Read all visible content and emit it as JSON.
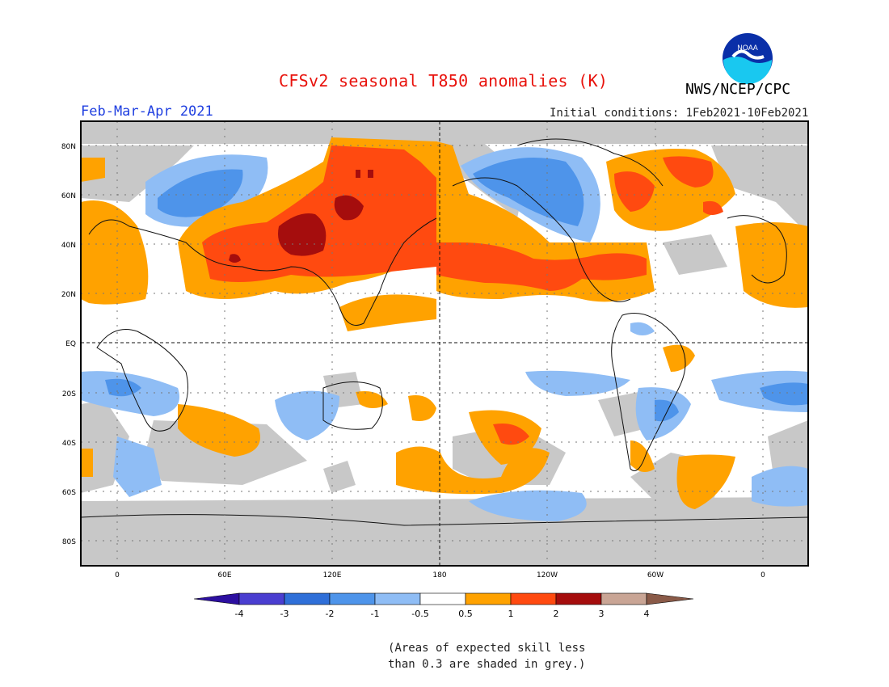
{
  "title": "CFSv2 seasonal T850 anomalies (K)",
  "organization": "NWS/NCEP/CPC",
  "logo_text": "NOAA",
  "period": "Feb-Mar-Apr 2021",
  "initial_conditions": "Initial conditions: 1Feb2021-10Feb2021",
  "lat_labels": [
    "80N",
    "60N",
    "40N",
    "20N",
    "EQ",
    "20S",
    "40S",
    "60S",
    "80S"
  ],
  "lon_labels": [
    "0",
    "60E",
    "120E",
    "180",
    "120W",
    "60W",
    "0"
  ],
  "colorbar": {
    "labels": [
      "-4",
      "-3",
      "-2",
      "-1",
      "-0.5",
      "0.5",
      "1",
      "2",
      "3",
      "4"
    ],
    "colors": [
      "#2c0fa0",
      "#4a3ed0",
      "#2f6fd8",
      "#4e94ea",
      "#8fbdf5",
      "#ffffff",
      "#ffa200",
      "#ff4a10",
      "#a50d0d",
      "#c9a595",
      "#8a5a48"
    ]
  },
  "skill_note": [
    "(Areas of expected skill less",
    "than 0.3 are shaded in grey.)"
  ],
  "colors": {
    "title": "#e8120c",
    "period": "#1f3fe0",
    "grey": "#c8c8c8"
  }
}
